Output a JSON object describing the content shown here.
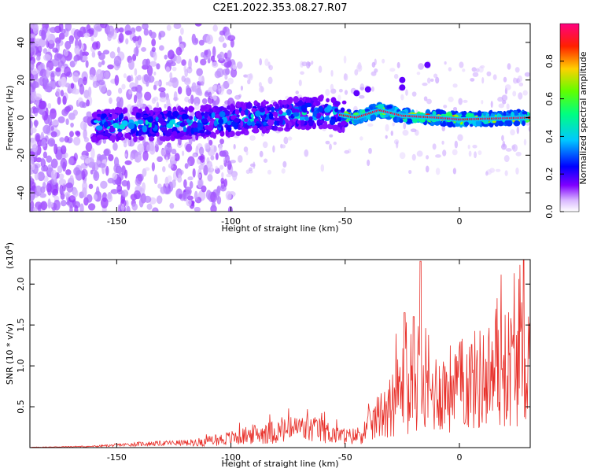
{
  "title": "C2E1.2022.353.08.27.R07",
  "chart_data": [
    {
      "type": "heatmap",
      "xlabel": "Height of straight line (km)",
      "ylabel": "Frequency (Hz)",
      "xlim": [
        -188,
        31
      ],
      "ylim": [
        -50,
        50
      ],
      "xticks": [
        -150,
        -100,
        -50,
        0
      ],
      "yticks": [
        -40,
        -20,
        0,
        20,
        40
      ],
      "grid": false,
      "colorbar": {
        "label": "Normalized spectral amplitude",
        "range": [
          0,
          1
        ],
        "ticks": [
          "0.0",
          "0.2",
          "0.4",
          "0.6",
          "0.8"
        ],
        "colormap": [
          "#ffffff",
          "#b27aff",
          "#8000ff",
          "#0000ff",
          "#00c8ff",
          "#00ff80",
          "#80ff00",
          "#ffd000",
          "#ff0000",
          "#ff0080"
        ]
      },
      "ridge": {
        "description_points_x": [
          -160,
          -120,
          -90,
          -60,
          -45,
          -35,
          -25,
          -10,
          0,
          30
        ],
        "description_points_y": [
          -4,
          -3,
          0,
          3,
          0,
          4,
          1,
          0,
          -1,
          0
        ]
      }
    },
    {
      "type": "line",
      "xlabel": "Height of straight line (km)",
      "ylabel": "SNR (10 * v/v)",
      "y_multiplier_label": "(x10",
      "y_multiplier_exp": "4",
      "y_multiplier_close": ")",
      "xlim": [
        -188,
        31
      ],
      "ylim": [
        0,
        2.3
      ],
      "xticks": [
        -150,
        -100,
        -50,
        0
      ],
      "yticks": [
        0.5,
        1.0,
        1.5,
        2.0
      ],
      "ytick_labels": [
        "0.5",
        "1.0",
        "1.5",
        "2.0"
      ],
      "grid": false,
      "line_color": "#e8302a",
      "envelope_x": [
        -188,
        -160,
        -140,
        -120,
        -110,
        -100,
        -90,
        -80,
        -70,
        -60,
        -55,
        -50,
        -45,
        -40,
        -35,
        -30,
        -27,
        -24,
        -22,
        -20,
        -18,
        -16,
        -14,
        -10,
        -5,
        0,
        5,
        10,
        15,
        20,
        25,
        31
      ],
      "envelope_y": [
        0.005,
        0.02,
        0.06,
        0.08,
        0.12,
        0.18,
        0.25,
        0.3,
        0.35,
        0.32,
        0.25,
        0.2,
        0.22,
        0.35,
        0.6,
        0.8,
        1.0,
        1.2,
        0.9,
        1.1,
        1.4,
        0.95,
        1.0,
        1.05,
        1.1,
        1.15,
        1.25,
        1.3,
        1.4,
        1.5,
        1.6,
        1.65
      ],
      "spikes_x": [
        -24,
        -20,
        -17
      ],
      "spikes_y": [
        1.65,
        1.6,
        2.28
      ]
    }
  ]
}
